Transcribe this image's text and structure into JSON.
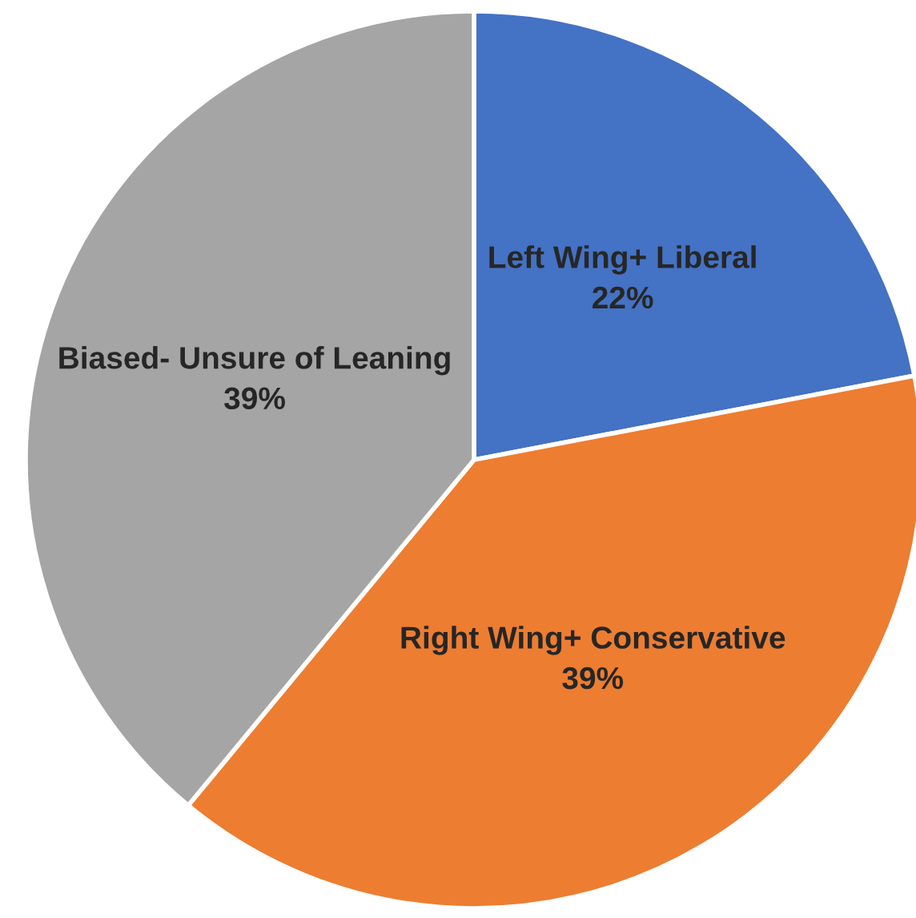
{
  "chart_data": {
    "type": "pie",
    "categories": [
      "Left Wing+ Liberal",
      "Right Wing+ Conservative",
      "Biased- Unsure of Leaning"
    ],
    "values": [
      22,
      39,
      39
    ],
    "colors": [
      "#4472c4",
      "#ed7d31",
      "#a5a5a5"
    ],
    "value_labels": [
      "22%",
      "39%",
      "39%"
    ],
    "legend": false
  }
}
